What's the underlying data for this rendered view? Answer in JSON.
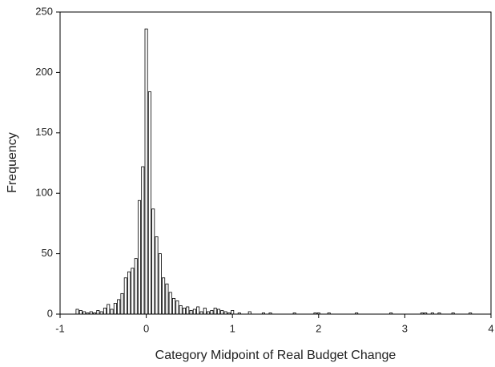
{
  "chart_data": {
    "type": "histogram",
    "x_label": "Category Midpoint of Real Budget Change",
    "y_label": "Frequency",
    "bins": [
      -0.82,
      -0.78,
      -0.74,
      -0.7,
      -0.66,
      -0.62,
      -0.58,
      -0.54,
      -0.5,
      -0.46,
      -0.42,
      -0.38,
      -0.34,
      -0.3,
      -0.26,
      -0.22,
      -0.18,
      -0.14,
      -0.1,
      -0.06,
      -0.02,
      0.02,
      0.06,
      0.1,
      0.14,
      0.18,
      0.22,
      0.26,
      0.3,
      0.34,
      0.38,
      0.42,
      0.46,
      0.5,
      0.54,
      0.58,
      0.62,
      0.66,
      0.7,
      0.74,
      0.78,
      0.82,
      0.86,
      0.9,
      0.94,
      0.98,
      1.02,
      1.06,
      1.1,
      1.14,
      1.18,
      1.22,
      1.26,
      1.3,
      1.34,
      1.38,
      1.42,
      1.46,
      1.5,
      1.54,
      1.58,
      1.62,
      1.66,
      1.7,
      1.74,
      1.78,
      1.82,
      1.86,
      1.9,
      1.94,
      1.98,
      2.02,
      2.06,
      2.1,
      2.14,
      2.18,
      2.22,
      2.26,
      2.3,
      2.34,
      2.38,
      2.42,
      2.46,
      2.5,
      2.54,
      2.58,
      2.62,
      2.66,
      2.7,
      2.74,
      2.78,
      2.82,
      2.86,
      2.9,
      2.94,
      2.98,
      3.02,
      3.06,
      3.1,
      3.14,
      3.18,
      3.22,
      3.26,
      3.3,
      3.34,
      3.38,
      3.42,
      3.46,
      3.5,
      3.54,
      3.58,
      3.62,
      3.66,
      3.7,
      3.74,
      3.78,
      3.82
    ],
    "values": [
      4,
      3,
      2,
      1,
      2,
      1,
      3,
      2,
      5,
      8,
      4,
      9,
      12,
      17,
      30,
      35,
      38,
      46,
      94,
      122,
      236,
      184,
      87,
      64,
      50,
      30,
      25,
      18,
      13,
      11,
      7,
      5,
      6,
      3,
      4,
      6,
      2,
      5,
      2,
      3,
      5,
      4,
      3,
      2,
      1,
      3,
      0,
      1,
      0,
      0,
      2,
      0,
      0,
      0,
      1,
      0,
      1,
      0,
      0,
      0,
      0,
      0,
      0,
      1,
      0,
      0,
      0,
      0,
      0,
      1,
      1,
      0,
      0,
      1,
      0,
      0,
      0,
      0,
      0,
      0,
      0,
      1,
      0,
      0,
      0,
      0,
      0,
      0,
      0,
      0,
      0,
      1,
      0,
      0,
      0,
      0,
      0,
      0,
      0,
      0,
      1,
      1,
      0,
      1,
      0,
      1,
      0,
      0,
      0,
      1,
      0,
      0,
      0,
      0,
      1,
      0
    ],
    "color": "#ffffff",
    "xlim": [
      -1,
      4
    ],
    "xticks": [
      -1,
      0,
      1,
      2,
      3,
      4
    ],
    "ylim": [
      0,
      250
    ],
    "yticks": [
      0,
      50,
      100,
      150,
      200,
      250
    ]
  }
}
